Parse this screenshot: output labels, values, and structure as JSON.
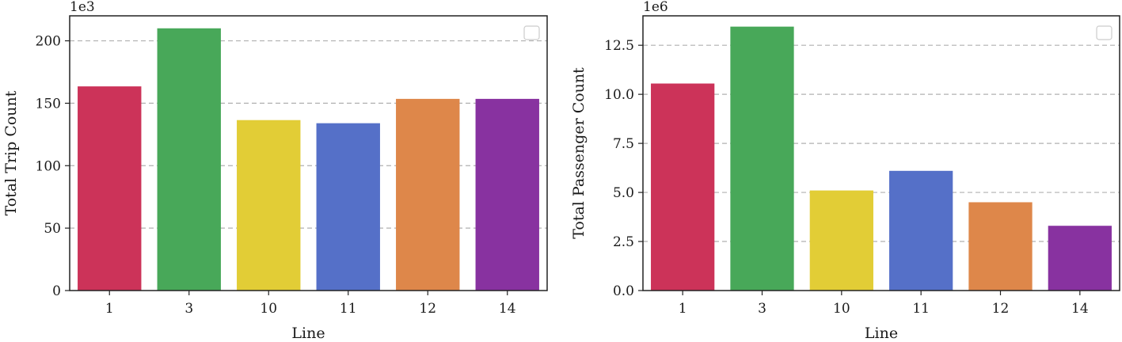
{
  "chart_data": [
    {
      "type": "bar",
      "categories": [
        "1",
        "3",
        "10",
        "11",
        "12",
        "14"
      ],
      "values": [
        163500,
        210000,
        136500,
        134000,
        153500,
        153500
      ],
      "colors": [
        "#cc3359",
        "#48a859",
        "#e2cd36",
        "#5570c8",
        "#de874a",
        "#8832a0"
      ],
      "xlabel": "Line",
      "ylabel": "Total Trip Count",
      "offset_label": "1e3",
      "ylim": [
        0,
        220000
      ],
      "yticks": [
        0,
        50000,
        100000,
        150000,
        200000
      ],
      "ytick_labels": [
        "0",
        "50",
        "100",
        "150",
        "200"
      ],
      "grid": "y dashed",
      "legend": "top-right (empty)"
    },
    {
      "type": "bar",
      "categories": [
        "1",
        "3",
        "10",
        "11",
        "12",
        "14"
      ],
      "values": [
        10550000,
        13450000,
        5100000,
        6100000,
        4500000,
        3300000
      ],
      "colors": [
        "#cc3359",
        "#48a859",
        "#e2cd36",
        "#5570c8",
        "#de874a",
        "#8832a0"
      ],
      "xlabel": "Line",
      "ylabel": "Total Passenger Count",
      "offset_label": "1e6",
      "ylim": [
        0,
        14000000
      ],
      "yticks": [
        0,
        2500000,
        5000000,
        7500000,
        10000000,
        12500000
      ],
      "ytick_labels": [
        "0.0",
        "2.5",
        "5.0",
        "7.5",
        "10.0",
        "12.5"
      ],
      "grid": "y dashed",
      "legend": "top-right (empty)"
    }
  ]
}
